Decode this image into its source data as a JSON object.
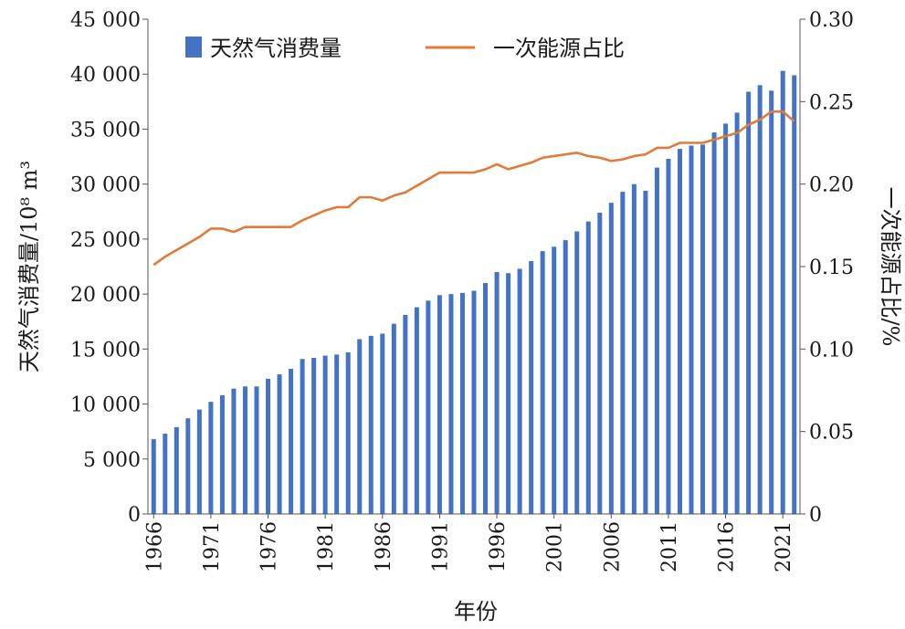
{
  "chart_data": {
    "type": "bar+line",
    "title": "",
    "xlabel": "年份",
    "ylabel_left": "天然气消费量/10⁸ m³",
    "ylabel_right": "一次能源占比/%",
    "ylim_left": [
      0,
      45000
    ],
    "ylim_right": [
      0,
      0.3
    ],
    "yticks_left": [
      0,
      5000,
      10000,
      15000,
      20000,
      25000,
      30000,
      35000,
      40000,
      45000
    ],
    "yticks_left_labels": [
      "0",
      "5 000",
      "10 000",
      "15 000",
      "20 000",
      "25 000",
      "30 000",
      "35 000",
      "40 000",
      "45 000"
    ],
    "yticks_right": [
      0,
      0.05,
      0.1,
      0.15,
      0.2,
      0.25,
      0.3
    ],
    "yticks_right_labels": [
      "0",
      "0.05",
      "0.10",
      "0.15",
      "0.20",
      "0.25",
      "0.30"
    ],
    "xticks": [
      "1966",
      "1971",
      "1976",
      "1981",
      "1986",
      "1991",
      "1996",
      "2001",
      "2006",
      "2011",
      "2016",
      "2021"
    ],
    "legend_position": "top-left",
    "colors": {
      "bar": "#4472c4",
      "line": "#e07b39"
    },
    "categories": [
      1966,
      1967,
      1968,
      1969,
      1970,
      1971,
      1972,
      1973,
      1974,
      1975,
      1976,
      1977,
      1978,
      1979,
      1980,
      1981,
      1982,
      1983,
      1984,
      1985,
      1986,
      1987,
      1988,
      1989,
      1990,
      1991,
      1992,
      1993,
      1994,
      1995,
      1996,
      1997,
      1998,
      1999,
      2000,
      2001,
      2002,
      2003,
      2004,
      2005,
      2006,
      2007,
      2008,
      2009,
      2010,
      2011,
      2012,
      2013,
      2014,
      2015,
      2016,
      2017,
      2018,
      2019,
      2020,
      2021,
      2022
    ],
    "series": [
      {
        "name": "天然气消费量",
        "type": "bar",
        "axis": "left",
        "values": [
          6800,
          7300,
          7900,
          8700,
          9500,
          10200,
          10800,
          11400,
          11600,
          11600,
          12300,
          12700,
          13200,
          14100,
          14200,
          14400,
          14500,
          14700,
          15900,
          16200,
          16400,
          17300,
          18100,
          18800,
          19400,
          19900,
          20000,
          20100,
          20300,
          21000,
          22000,
          21900,
          22300,
          23000,
          23900,
          24300,
          24900,
          25700,
          26600,
          27400,
          28300,
          29300,
          30000,
          29400,
          31500,
          32300,
          33200,
          33500,
          33600,
          34700,
          35500,
          36500,
          38400,
          39000,
          38500,
          40300,
          39900
        ]
      },
      {
        "name": "一次能源占比",
        "type": "line",
        "axis": "right",
        "values": [
          0.151,
          0.156,
          0.16,
          0.164,
          0.168,
          0.173,
          0.173,
          0.171,
          0.174,
          0.174,
          0.174,
          0.174,
          0.174,
          0.178,
          0.181,
          0.184,
          0.186,
          0.186,
          0.192,
          0.192,
          0.19,
          0.193,
          0.195,
          0.199,
          0.203,
          0.207,
          0.207,
          0.207,
          0.207,
          0.209,
          0.212,
          0.209,
          0.211,
          0.213,
          0.216,
          0.217,
          0.218,
          0.219,
          0.217,
          0.216,
          0.214,
          0.215,
          0.217,
          0.218,
          0.222,
          0.222,
          0.225,
          0.225,
          0.225,
          0.227,
          0.229,
          0.231,
          0.236,
          0.239,
          0.244,
          0.244,
          0.238
        ]
      }
    ]
  }
}
